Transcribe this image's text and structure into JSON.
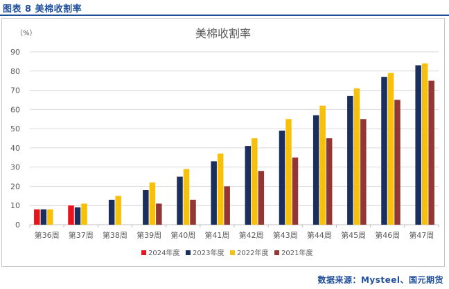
{
  "caption": "图表 8  美棉收割率",
  "source": "数据来源：Mysteel、国元期货",
  "colors": {
    "2024年度": "#e8141b",
    "2023年度": "#1b2f5e",
    "2022年度": "#f7c10b",
    "2021年度": "#943634",
    "grid": "#d9d9d9",
    "axis": "#bfbfbf",
    "text": "#595959"
  },
  "chart_data": {
    "type": "bar",
    "title": "美棉收割率",
    "unit_label": "（%）",
    "ylim": [
      0,
      90
    ],
    "yticks": [
      0,
      10,
      20,
      30,
      40,
      50,
      60,
      70,
      80,
      90
    ],
    "grid": true,
    "legend_position": "bottom",
    "categories": [
      "第36周",
      "第37周",
      "第38周",
      "第39周",
      "第40周",
      "第41周",
      "第42周",
      "第43周",
      "第44周",
      "第45周",
      "第46周",
      "第47周"
    ],
    "series": [
      {
        "name": "2024年度",
        "values": [
          8,
          10,
          null,
          null,
          null,
          null,
          null,
          null,
          null,
          null,
          null,
          null
        ]
      },
      {
        "name": "2023年度",
        "values": [
          8,
          9,
          13,
          18,
          25,
          33,
          41,
          49,
          57,
          67,
          77,
          83
        ]
      },
      {
        "name": "2022年度",
        "values": [
          8,
          11,
          15,
          22,
          29,
          37,
          45,
          55,
          62,
          71,
          79,
          84
        ]
      },
      {
        "name": "2021年度",
        "values": [
          null,
          null,
          null,
          11,
          13,
          20,
          28,
          35,
          45,
          55,
          65,
          75
        ]
      }
    ]
  }
}
